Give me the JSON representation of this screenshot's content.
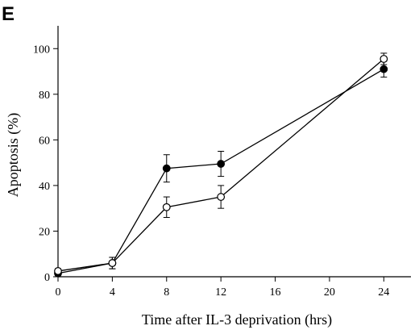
{
  "panel_label": "E",
  "chart_data": {
    "type": "line",
    "xlabel": "Time after IL-3 deprivation (hrs)",
    "ylabel": "Apoptosis (%)",
    "xlim": [
      0,
      26
    ],
    "ylim": [
      0,
      110
    ],
    "x_ticks": [
      0,
      4,
      8,
      12,
      16,
      20,
      24
    ],
    "y_ticks": [
      0,
      20,
      40,
      60,
      80,
      100
    ],
    "grid": false,
    "x": [
      0,
      4,
      8,
      12,
      24
    ],
    "series": [
      {
        "marker": "filled-circle",
        "color": "#000000",
        "values": [
          1.5,
          6,
          47.5,
          49.5,
          91
        ],
        "errors": [
          1,
          2.5,
          6,
          5.5,
          3.5
        ]
      },
      {
        "marker": "open-circle",
        "color": "#000000",
        "values": [
          2.5,
          6,
          30.5,
          35,
          95.5
        ],
        "errors": [
          1,
          2.5,
          4.5,
          5,
          2.5
        ]
      }
    ]
  }
}
